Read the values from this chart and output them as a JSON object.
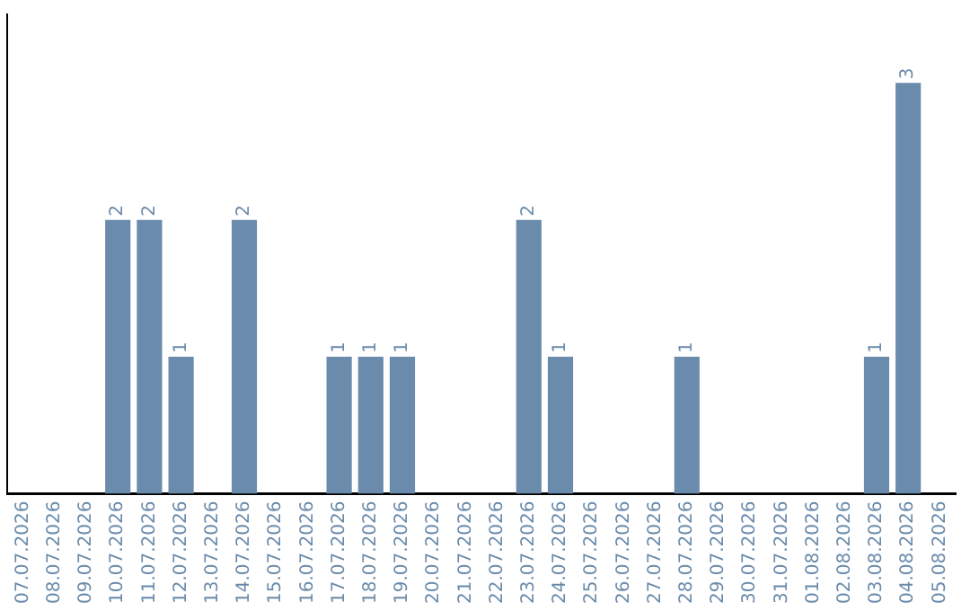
{
  "chart_data": {
    "type": "bar",
    "categories": [
      "07.07.2026",
      "08.07.2026",
      "09.07.2026",
      "10.07.2026",
      "11.07.2026",
      "12.07.2026",
      "13.07.2026",
      "14.07.2026",
      "15.07.2026",
      "16.07.2026",
      "17.07.2026",
      "18.07.2026",
      "19.07.2026",
      "20.07.2026",
      "21.07.2026",
      "22.07.2026",
      "23.07.2026",
      "24.07.2026",
      "25.07.2026",
      "26.07.2026",
      "27.07.2026",
      "28.07.2026",
      "29.07.2026",
      "30.07.2026",
      "31.07.2026",
      "01.08.2026",
      "02.08.2026",
      "03.08.2026",
      "04.08.2026",
      "05.08.2026"
    ],
    "values": [
      null,
      null,
      null,
      2,
      2,
      1,
      null,
      2,
      null,
      null,
      1,
      1,
      1,
      null,
      null,
      null,
      2,
      1,
      null,
      null,
      null,
      1,
      null,
      null,
      null,
      null,
      null,
      1,
      3,
      null
    ],
    "color": "#6a8bab",
    "data_labels": true,
    "grid": false,
    "legend": false
  }
}
